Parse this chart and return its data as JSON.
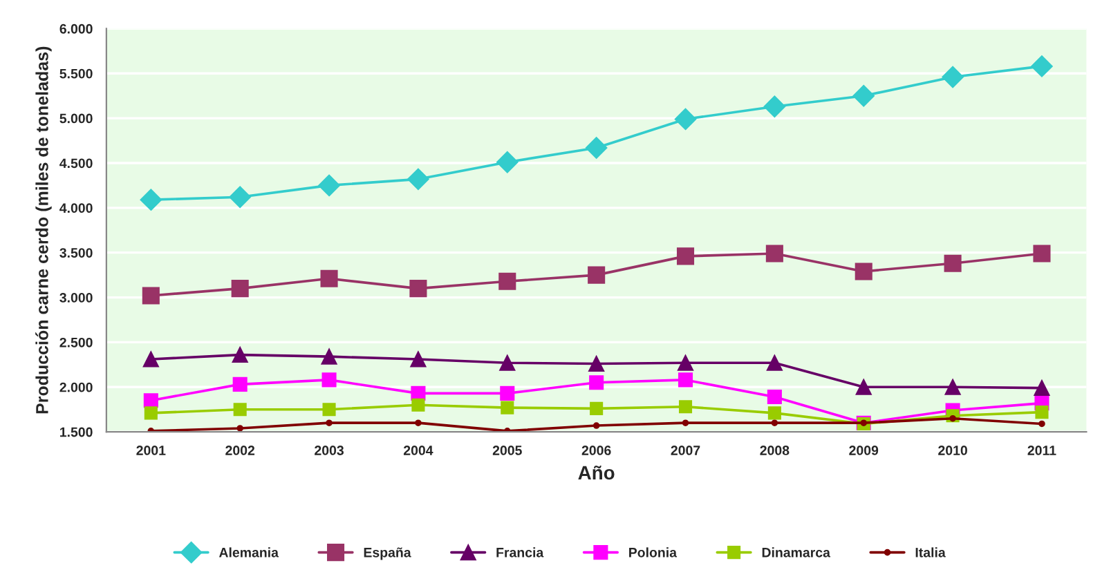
{
  "chart_data": {
    "type": "line",
    "xlabel": "Año",
    "ylabel": "Producción carne cerdo (miles de toneladas)",
    "categories": [
      "2001",
      "2002",
      "2003",
      "2004",
      "2005",
      "2006",
      "2007",
      "2008",
      "2009",
      "2010",
      "2011"
    ],
    "series": [
      {
        "name": "Alemania",
        "color": "#33cccc",
        "marker": "diamond",
        "values": [
          4090,
          4120,
          4250,
          4320,
          4510,
          4670,
          4990,
          5130,
          5250,
          5460,
          5580
        ]
      },
      {
        "name": "España",
        "color": "#993366",
        "marker": "square",
        "values": [
          3020,
          3100,
          3210,
          3100,
          3180,
          3250,
          3460,
          3490,
          3290,
          3380,
          3490
        ]
      },
      {
        "name": "Francia",
        "color": "#660066",
        "marker": "triangle",
        "values": [
          2310,
          2360,
          2340,
          2310,
          2270,
          2260,
          2270,
          2270,
          2000,
          2000,
          1990
        ]
      },
      {
        "name": "Polonia",
        "color": "#ff00ff",
        "marker": "square",
        "values": [
          1850,
          2030,
          2080,
          1930,
          1930,
          2050,
          2080,
          1890,
          1600,
          1740,
          1820
        ]
      },
      {
        "name": "Dinamarca",
        "color": "#99cc00",
        "marker": "square",
        "values": [
          1710,
          1750,
          1750,
          1800,
          1770,
          1760,
          1780,
          1710,
          1590,
          1680,
          1720
        ]
      },
      {
        "name": "Italia",
        "color": "#800000",
        "marker": "circle",
        "values": [
          1510,
          1540,
          1600,
          1600,
          1510,
          1570,
          1600,
          1600,
          1600,
          1650,
          1590
        ]
      }
    ],
    "ylim": [
      1500,
      6000
    ],
    "yticks": [
      {
        "value": 1500,
        "label": "1.500"
      },
      {
        "value": 2000,
        "label": "2.000"
      },
      {
        "value": 2500,
        "label": "2.500"
      },
      {
        "value": 3000,
        "label": "3.000"
      },
      {
        "value": 3500,
        "label": "3.500"
      },
      {
        "value": 4000,
        "label": "4.000"
      },
      {
        "value": 4500,
        "label": "4.500"
      },
      {
        "value": 5000,
        "label": "5.000"
      },
      {
        "value": 5500,
        "label": "5.500"
      },
      {
        "value": 6000,
        "label": "6.000"
      }
    ],
    "grid": "y",
    "legend": "bottom",
    "line_style": "solid"
  }
}
